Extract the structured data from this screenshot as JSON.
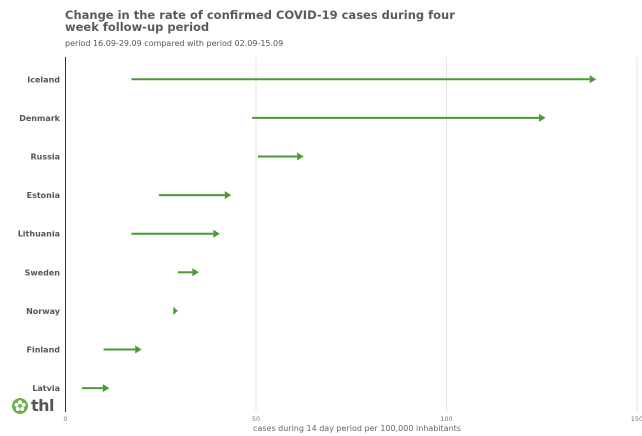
{
  "title": "Change in the rate of confirmed COVID-19 cases during four week follow-up period",
  "subtitle": "period 16.09-29.09 compared with period 02.09-15.09",
  "logo": {
    "text": "thl",
    "icon": "flower-icon"
  },
  "colors": {
    "arrow": "#4a9a35",
    "grid": "#e6e6e6",
    "axis": "#333333"
  },
  "chart_data": {
    "type": "arrow",
    "title": "Change in the rate of confirmed COVID-19 cases during four week follow-up period",
    "subtitle": "period 16.09-29.09 compared with period 02.09-15.09",
    "xlabel": "cases during 14 day period per 100,000 inhabitants",
    "xlim": [
      0,
      150
    ],
    "xticks": [
      0,
      50,
      100,
      150
    ],
    "categories": [
      "Iceland",
      "Denmark",
      "Russia",
      "Estonia",
      "Lithuania",
      "Sweden",
      "Norway",
      "Finland",
      "Latvia"
    ],
    "series": [
      {
        "name": "period 02.09-15.09",
        "values": [
          17.3,
          49,
          50.5,
          24.5,
          17.3,
          29.5,
          28.3,
          10,
          4.3
        ]
      },
      {
        "name": "period 16.09-29.09",
        "values": [
          139.3,
          126,
          62.5,
          43.5,
          40.5,
          35,
          29.5,
          20,
          11.5
        ]
      }
    ],
    "grid": true,
    "legend": "none"
  }
}
